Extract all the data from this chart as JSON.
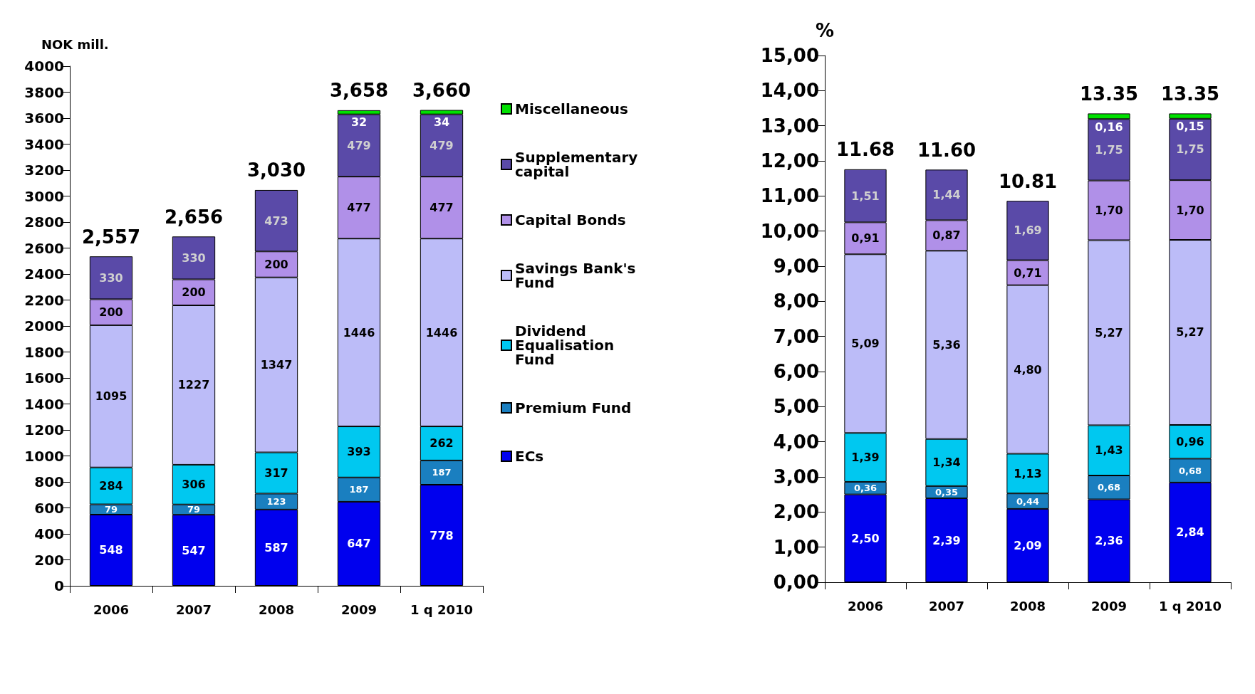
{
  "chart_data": [
    {
      "type": "bar",
      "stacked": true,
      "ylabel": "NOK mill.",
      "categories": [
        "2006",
        "2007",
        "2008",
        "2009",
        "1 q 2010"
      ],
      "ylim": [
        0,
        4000
      ],
      "yticks": [
        0,
        200,
        400,
        600,
        800,
        1000,
        1200,
        1400,
        1600,
        1800,
        2000,
        2200,
        2400,
        2600,
        2800,
        3000,
        3200,
        3400,
        3600,
        3800,
        4000
      ],
      "data_labels": true,
      "legend": "right",
      "grid": false,
      "annotations": [
        "2,557",
        "2,656",
        "3,030",
        "3,658",
        "3,660"
      ],
      "series": [
        {
          "name": "ECs",
          "color": "#0000ee",
          "values": [
            548,
            547,
            587,
            647,
            778
          ]
        },
        {
          "name": "Premium Fund",
          "color": "#1a7fc0",
          "values": [
            79,
            79,
            123,
            187,
            187
          ]
        },
        {
          "name": "Dividend Equalisation Fund",
          "color": "#00c8f0",
          "values": [
            284,
            306,
            317,
            393,
            262
          ]
        },
        {
          "name": "Savings Bank's Fund",
          "color": "#bcbcf8",
          "values": [
            1095,
            1227,
            1347,
            1446,
            1446
          ]
        },
        {
          "name": "Capital Bonds",
          "color": "#b090e8",
          "values": [
            200,
            200,
            200,
            477,
            477
          ]
        },
        {
          "name": "Supplementary capital",
          "color": "#5a4aa8",
          "values": [
            330,
            330,
            473,
            479,
            479
          ]
        },
        {
          "name": "Miscellaneous",
          "color": "#00e000",
          "values": [
            null,
            null,
            null,
            32,
            34
          ]
        }
      ]
    },
    {
      "type": "bar",
      "stacked": true,
      "ylabel": "%",
      "categories": [
        "2006",
        "2007",
        "2008",
        "2009",
        "1 q 2010"
      ],
      "ylim": [
        0,
        15
      ],
      "yticks": [
        {
          "value": 0,
          "label": "0,00"
        },
        {
          "value": 1,
          "label": "1,00"
        },
        {
          "value": 2,
          "label": "2,00"
        },
        {
          "value": 3,
          "label": "3,00"
        },
        {
          "value": 4,
          "label": "4,00"
        },
        {
          "value": 5,
          "label": "5,00"
        },
        {
          "value": 6,
          "label": "6,00"
        },
        {
          "value": 7,
          "label": "7,00"
        },
        {
          "value": 8,
          "label": "8,00"
        },
        {
          "value": 9,
          "label": "9,00"
        },
        {
          "value": 10,
          "label": "10,00"
        },
        {
          "value": 11,
          "label": "11,00"
        },
        {
          "value": 12,
          "label": "12,00"
        },
        {
          "value": 13,
          "label": "13,00"
        },
        {
          "value": 14,
          "label": "14,00"
        },
        {
          "value": 15,
          "label": "15,00"
        }
      ],
      "grid": false,
      "annotations": [
        "11.68",
        "11.60",
        "10.81",
        "13.35",
        "13.35"
      ],
      "series": [
        {
          "color": "#0000ee",
          "values": [
            2.5,
            2.39,
            2.09,
            2.36,
            2.84
          ],
          "value_labels": [
            "2,50",
            "2,39",
            "2,09",
            "2,36",
            "2,84"
          ]
        },
        {
          "color": "#1a7fc0",
          "values": [
            0.36,
            0.35,
            0.44,
            0.68,
            0.68
          ],
          "value_labels": [
            "0,36",
            "0,35",
            "0,44",
            "0,68",
            "0,68"
          ]
        },
        {
          "color": "#00c8f0",
          "values": [
            1.39,
            1.34,
            1.13,
            1.43,
            0.96
          ],
          "value_labels": [
            "1,39",
            "1,34",
            "1,13",
            "1,43",
            "0,96"
          ]
        },
        {
          "color": "#bcbcf8",
          "values": [
            5.09,
            5.36,
            4.8,
            5.27,
            5.27
          ],
          "value_labels": [
            "5,09",
            "5,36",
            "4,80",
            "5,27",
            "5,27"
          ]
        },
        {
          "color": "#b090e8",
          "values": [
            0.91,
            0.87,
            0.71,
            1.7,
            1.7
          ],
          "value_labels": [
            "0,91",
            "0,87",
            "0,71",
            "1,70",
            "1,70"
          ]
        },
        {
          "color": "#5a4aa8",
          "values": [
            1.51,
            1.44,
            1.69,
            1.75,
            1.75
          ],
          "value_labels": [
            "1,51",
            "1,44",
            "1,69",
            "1,75",
            "1,75"
          ]
        },
        {
          "color": "#00e000",
          "values": [
            null,
            null,
            null,
            0.16,
            0.15
          ],
          "value_labels": [
            null,
            null,
            null,
            "0,16",
            "0,15"
          ]
        }
      ]
    }
  ]
}
